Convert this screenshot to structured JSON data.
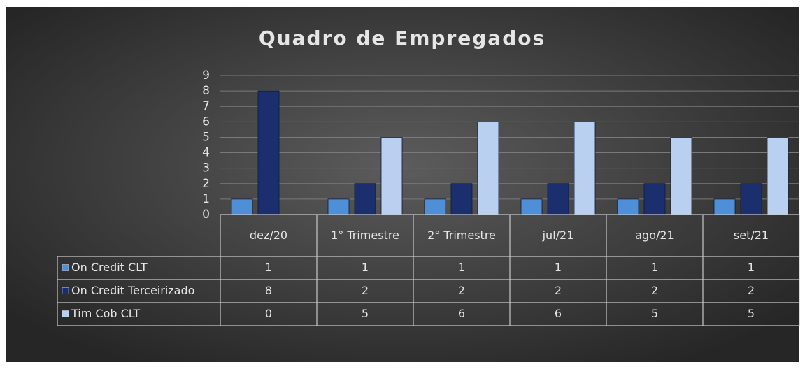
{
  "chart_data": {
    "type": "bar",
    "title": "Quadro de Empregados",
    "categories": [
      "dez/20",
      "1° Trimestre",
      "2° Trimestre",
      "jul/21",
      "ago/21",
      "set/21"
    ],
    "series": [
      {
        "name": "On Credit CLT",
        "color": "#4f8fd8",
        "values": [
          1,
          1,
          1,
          1,
          1,
          1
        ]
      },
      {
        "name": "On Credit Terceirizado",
        "color": "#1b2f6e",
        "values": [
          8,
          2,
          2,
          2,
          2,
          2
        ]
      },
      {
        "name": "Tim Cob CLT",
        "color": "#b9d0f0",
        "values": [
          0,
          5,
          6,
          6,
          5,
          5
        ]
      }
    ],
    "ylim": [
      0,
      9
    ],
    "yticks": [
      0,
      1,
      2,
      3,
      4,
      5,
      6,
      7,
      8,
      9
    ],
    "grid": true
  }
}
